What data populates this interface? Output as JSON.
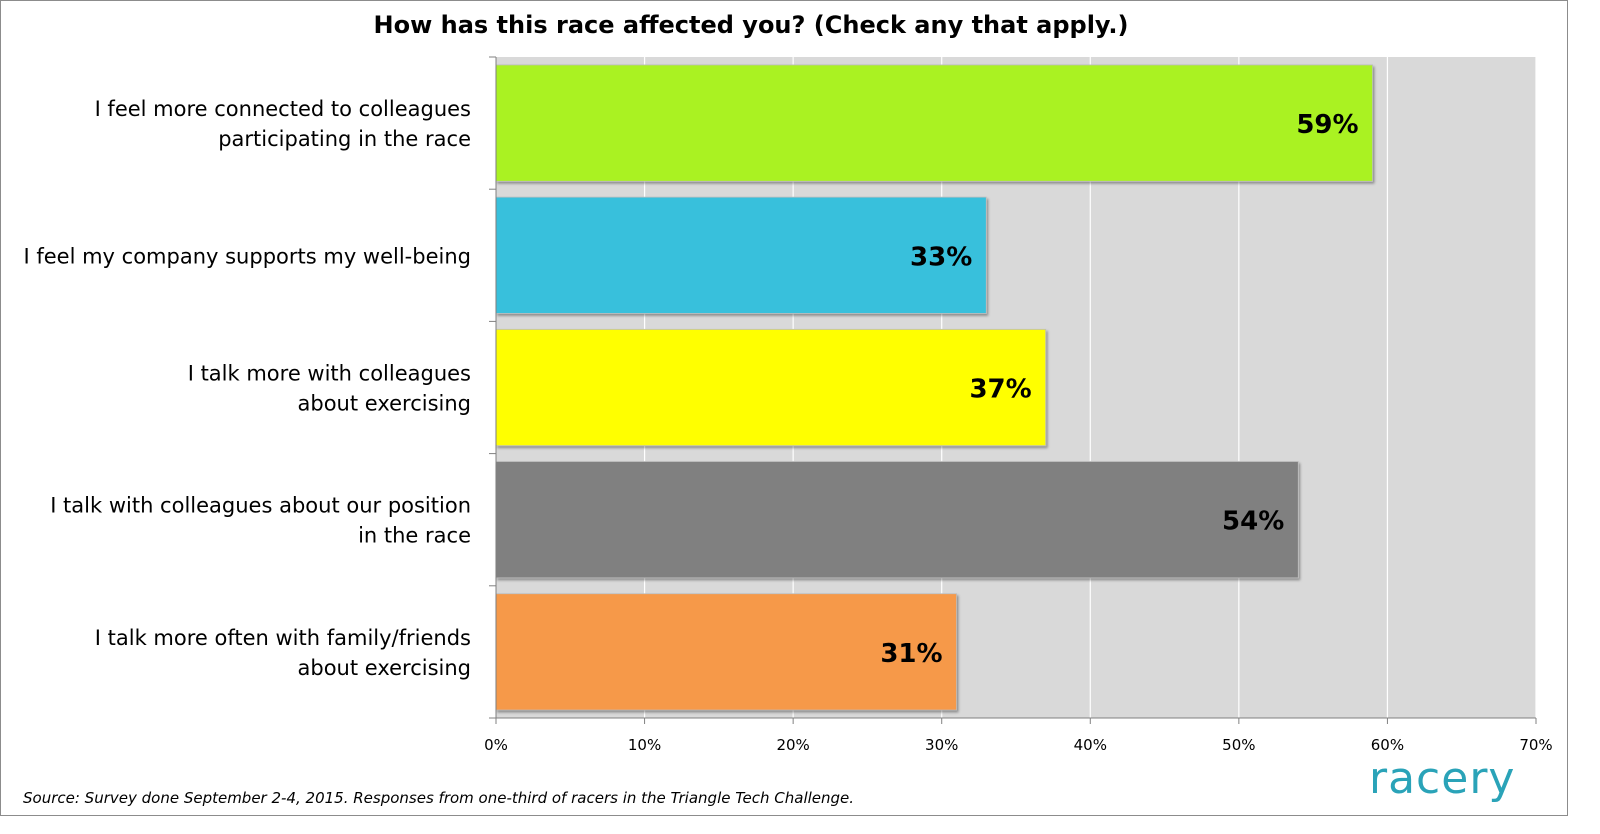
{
  "chart_data": {
    "type": "bar",
    "orientation": "horizontal",
    "title": "How has this race affected you? (Check any that apply.)",
    "categories": [
      [
        "I feel more connected to colleagues",
        "participating in the race"
      ],
      [
        "I feel my company supports my well-being"
      ],
      [
        "I talk more with colleagues",
        "about exercising"
      ],
      [
        "I talk with colleagues about our position",
        "in the race"
      ],
      [
        "I talk more often with family/friends",
        "about exercising"
      ]
    ],
    "values": [
      59,
      33,
      37,
      54,
      31
    ],
    "value_labels": [
      "59%",
      "33%",
      "37%",
      "54%",
      "31%"
    ],
    "colors": [
      "#aaf223",
      "#38c0dc",
      "#ffff00",
      "#808080",
      "#f6994a"
    ],
    "xlim": [
      0,
      70
    ],
    "x_ticks": [
      0,
      10,
      20,
      30,
      40,
      50,
      60,
      70
    ],
    "x_tick_labels": [
      "0%",
      "10%",
      "20%",
      "30%",
      "40%",
      "50%",
      "60%",
      "70%"
    ],
    "grid": true,
    "plot_background": "#d9d9d9",
    "gridline_color": "#ffffff"
  },
  "footer": {
    "source": "Source: Survey done September 2-4, 2015. Responses from one-third of racers in the Triangle Tech Challenge.",
    "logo_text": "racery",
    "logo_color": "#2aa3b8"
  }
}
